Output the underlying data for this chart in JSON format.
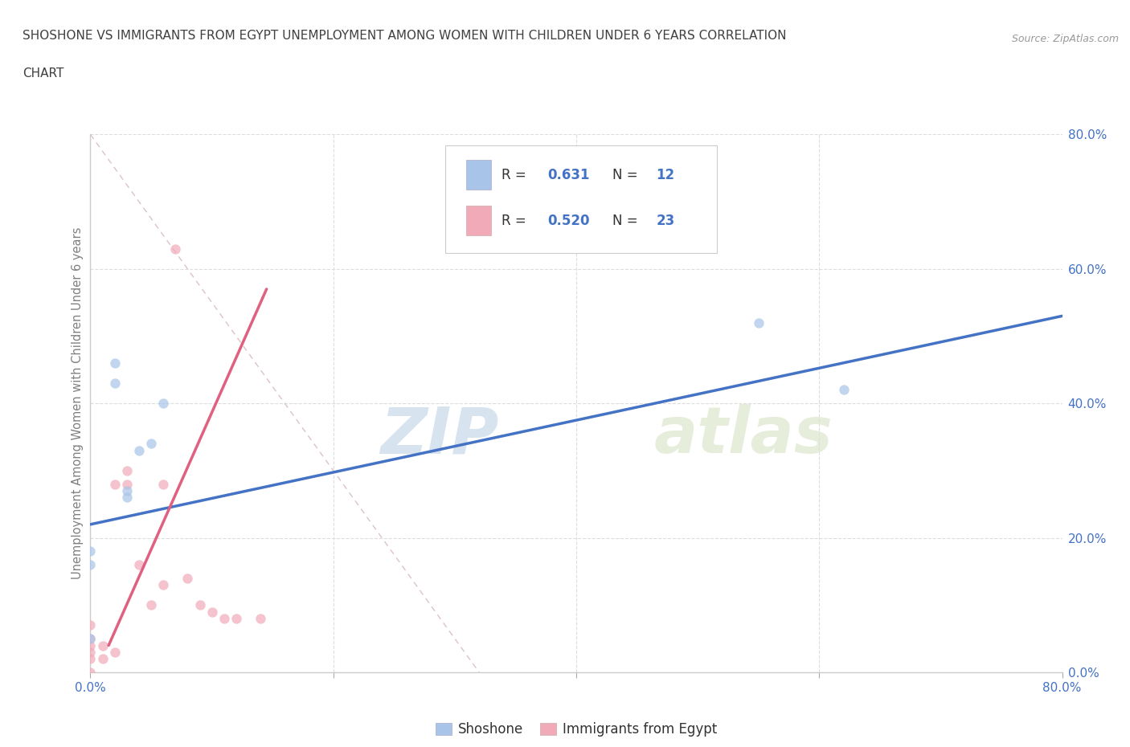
{
  "title_line1": "SHOSHONE VS IMMIGRANTS FROM EGYPT UNEMPLOYMENT AMONG WOMEN WITH CHILDREN UNDER 6 YEARS CORRELATION",
  "title_line2": "CHART",
  "source_text": "Source: ZipAtlas.com",
  "ylabel": "Unemployment Among Women with Children Under 6 years",
  "watermark_zip": "ZIP",
  "watermark_atlas": "atlas",
  "xlim": [
    0.0,
    0.8
  ],
  "ylim": [
    0.0,
    0.8
  ],
  "xtick_vals": [
    0.0,
    0.2,
    0.4,
    0.6,
    0.8
  ],
  "ytick_vals": [
    0.0,
    0.2,
    0.4,
    0.6,
    0.8
  ],
  "shoshone_color": "#a8c4e8",
  "egypt_color": "#f0aab8",
  "shoshone_R": 0.631,
  "shoshone_N": 12,
  "egypt_R": 0.52,
  "egypt_N": 23,
  "shoshone_x": [
    0.0,
    0.0,
    0.0,
    0.02,
    0.02,
    0.03,
    0.03,
    0.04,
    0.05,
    0.06,
    0.55,
    0.62
  ],
  "shoshone_y": [
    0.16,
    0.18,
    0.05,
    0.43,
    0.46,
    0.26,
    0.27,
    0.33,
    0.34,
    0.4,
    0.52,
    0.42
  ],
  "egypt_x": [
    0.0,
    0.0,
    0.0,
    0.0,
    0.0,
    0.0,
    0.01,
    0.01,
    0.02,
    0.02,
    0.03,
    0.03,
    0.04,
    0.05,
    0.06,
    0.06,
    0.07,
    0.08,
    0.09,
    0.1,
    0.11,
    0.12,
    0.14
  ],
  "egypt_y": [
    0.0,
    0.02,
    0.03,
    0.04,
    0.05,
    0.07,
    0.02,
    0.04,
    0.03,
    0.28,
    0.28,
    0.3,
    0.16,
    0.1,
    0.13,
    0.28,
    0.63,
    0.14,
    0.1,
    0.09,
    0.08,
    0.08,
    0.08
  ],
  "shoshone_line_color": "#4472c4",
  "egypt_line_color": "#e06080",
  "dash_line_color": "#ccaaaa",
  "grid_color": "#dddddd",
  "background_color": "#ffffff",
  "title_color": "#404040",
  "tick_color": "#4472c4",
  "marker_size": 80,
  "legend_text_color": "#4472c4",
  "legend_label_shoshone": "Shoshone",
  "legend_label_egypt": "Immigrants from Egypt"
}
